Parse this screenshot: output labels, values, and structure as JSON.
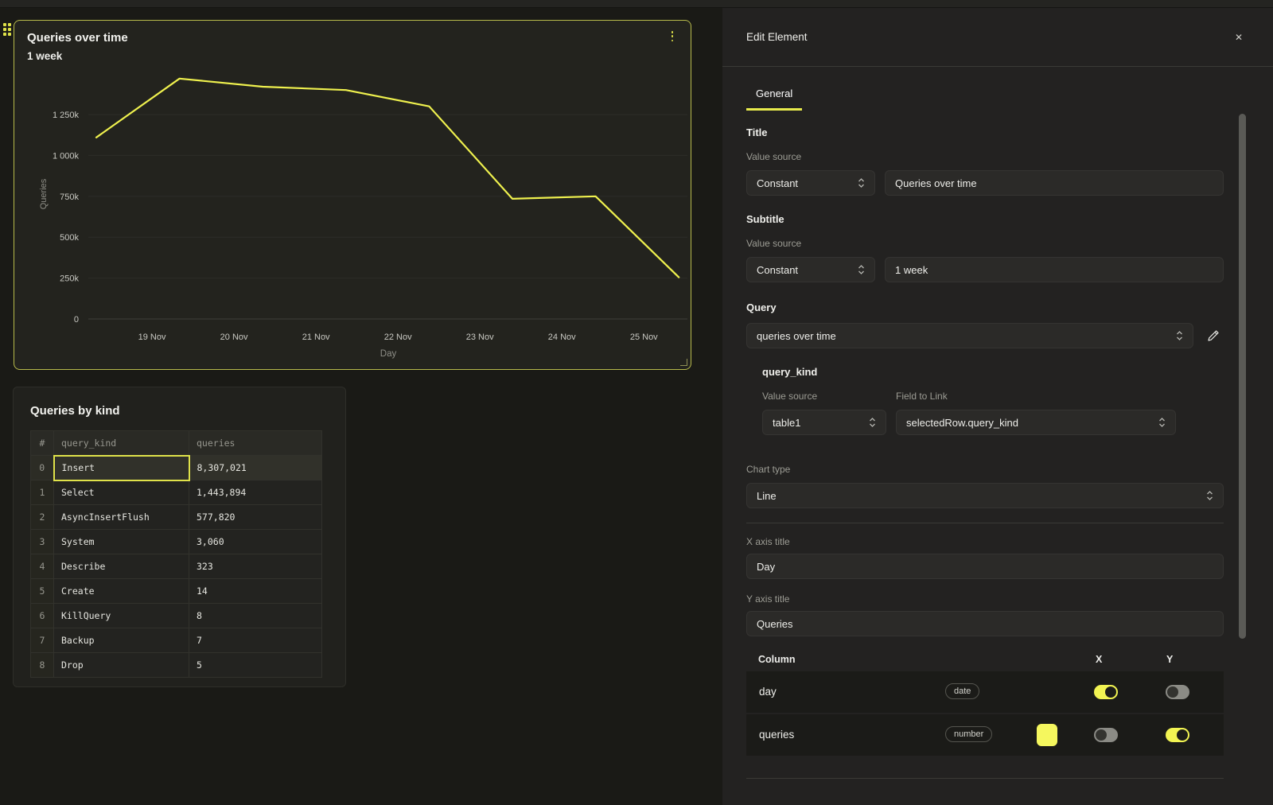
{
  "colors": {
    "accent_yellow": "#e8eb4c",
    "line_yellow": "#eff14e",
    "panel_selected_border": "#b7ba4b",
    "toggle_on": "#f2f452",
    "toggle_off": "#8b8b85",
    "swatch_yellow": "#f5f75e"
  },
  "chart_data": {
    "type": "line",
    "title": "Queries over time",
    "subtitle": "1 week",
    "xlabel": "Day",
    "ylabel": "Queries",
    "x_tick_labels": [
      "19 Nov",
      "20 Nov",
      "21 Nov",
      "22 Nov",
      "23 Nov",
      "24 Nov",
      "25 Nov"
    ],
    "x_tick_positions": [
      0.67,
      1.655,
      2.64,
      3.625,
      4.61,
      5.595,
      6.58
    ],
    "y_tick_labels": [
      "0",
      "250k",
      "500k",
      "750k",
      "1 000k",
      "1 250k"
    ],
    "y_tick_values": [
      0,
      250000,
      500000,
      750000,
      1000000,
      1250000
    ],
    "ylim": [
      0,
      1500000
    ],
    "grid": true,
    "legend": "none",
    "series": [
      {
        "name": "queries",
        "color": "#eff14e",
        "values": [
          1110000,
          1470000,
          1420000,
          1400000,
          1300000,
          735000,
          750000,
          255000
        ]
      }
    ]
  },
  "chart_panel": {
    "title": "Queries over time",
    "subtitle": "1 week",
    "menu_icon": "kebab-menu"
  },
  "table_panel": {
    "title": "Queries by kind",
    "columns": [
      "#",
      "query_kind",
      "queries"
    ],
    "rows": [
      {
        "idx": "0",
        "query_kind": "Insert",
        "queries": "8,307,021"
      },
      {
        "idx": "1",
        "query_kind": "Select",
        "queries": "1,443,894"
      },
      {
        "idx": "2",
        "query_kind": "AsyncInsertFlush",
        "queries": "577,820"
      },
      {
        "idx": "3",
        "query_kind": "System",
        "queries": "3,060"
      },
      {
        "idx": "4",
        "query_kind": "Describe",
        "queries": "323"
      },
      {
        "idx": "5",
        "query_kind": "Create",
        "queries": "14"
      },
      {
        "idx": "6",
        "query_kind": "KillQuery",
        "queries": "8"
      },
      {
        "idx": "7",
        "query_kind": "Backup",
        "queries": "7"
      },
      {
        "idx": "8",
        "query_kind": "Drop",
        "queries": "5"
      }
    ],
    "selected_row": 0,
    "selected_cell_value": "Insert"
  },
  "editor": {
    "title": "Edit Element",
    "close_label": "✕",
    "tab": "General",
    "title_section": {
      "heading": "Title",
      "value_source_label": "Value source",
      "source": "Constant",
      "value": "Queries over time"
    },
    "subtitle_section": {
      "heading": "Subtitle",
      "value_source_label": "Value source",
      "source": "Constant",
      "value": "1 week"
    },
    "query_section": {
      "heading": "Query",
      "value": "queries over time"
    },
    "query_kind_section": {
      "heading": "query_kind",
      "value_source_label": "Value source",
      "field_label": "Field to Link",
      "source": "table1",
      "field": "selectedRow.query_kind"
    },
    "chart_type": {
      "label": "Chart type",
      "value": "Line"
    },
    "x_axis": {
      "label": "X axis title",
      "value": "Day"
    },
    "y_axis": {
      "label": "Y axis title",
      "value": "Queries"
    },
    "columns_config": {
      "headers": {
        "column": "Column",
        "x": "X",
        "y": "Y"
      },
      "rows": [
        {
          "name": "day",
          "type": "date",
          "x_on": true,
          "y_on": false,
          "has_swatch": false
        },
        {
          "name": "queries",
          "type": "number",
          "x_on": false,
          "y_on": true,
          "has_swatch": true,
          "swatch_color": "#f5f75e"
        }
      ]
    }
  }
}
